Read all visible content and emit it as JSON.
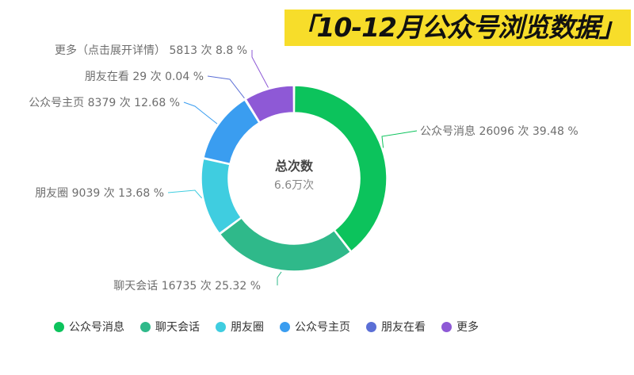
{
  "headline": "「10-12月公众号浏览数据」",
  "colors": {
    "headline_bg": "#f7dd2a"
  },
  "chart_data": {
    "type": "pie",
    "variant": "donut",
    "title": "",
    "center_title": "总次数",
    "center_value": "6.6万次",
    "legend_position": "bottom",
    "slices": [
      {
        "name": "公众号消息",
        "value": 26096,
        "percent": 39.48,
        "label": "公众号消息 26096 次 39.48 %",
        "color": "#0cc35c"
      },
      {
        "name": "聊天会话",
        "value": 16735,
        "percent": 25.32,
        "label": "聊天会话 16735 次 25.32 %",
        "color": "#2fb98a"
      },
      {
        "name": "朋友圈",
        "value": 9039,
        "percent": 13.68,
        "label": "朋友圈 9039 次 13.68 %",
        "color": "#3fcde0"
      },
      {
        "name": "公众号主页",
        "value": 8379,
        "percent": 12.68,
        "label": "公众号主页 8379 次 12.68 %",
        "color": "#3a9df0"
      },
      {
        "name": "朋友在看",
        "value": 29,
        "percent": 0.04,
        "label": "朋友在看 29 次 0.04 %",
        "color": "#5b6fd6"
      },
      {
        "name": "更多",
        "value": 5813,
        "percent": 8.8,
        "label": "更多（点击展开详情） 5813 次 8.8 %",
        "color": "#8e59d6"
      }
    ]
  }
}
